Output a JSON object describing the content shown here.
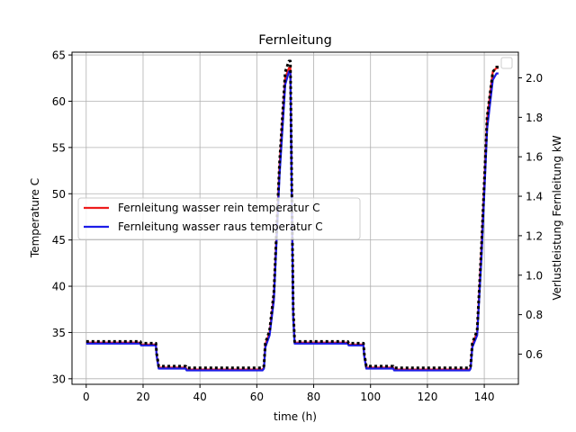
{
  "chart_data": {
    "type": "line",
    "title": "Fernleitung",
    "xlabel": "time (h)",
    "ylabel": "Temperature C",
    "y2label": "Verlustleistung Fernleitung kW",
    "xlim": [
      -5,
      152
    ],
    "ylim": [
      29.4,
      65.3
    ],
    "y2lim": [
      0.447,
      2.13
    ],
    "x_ticks": [
      0,
      20,
      40,
      60,
      80,
      100,
      120,
      140
    ],
    "y_ticks": [
      30,
      35,
      40,
      45,
      50,
      55,
      60,
      65
    ],
    "y2_ticks": [
      0.6,
      0.8,
      1.0,
      1.2,
      1.4,
      1.6,
      1.8,
      2.0
    ],
    "y2_tick_labels": [
      "0.6",
      "0.8",
      "1.0",
      "1.2",
      "1.4",
      "1.6",
      "1.8",
      "2.0"
    ],
    "grid": true,
    "legend_position": "center-left",
    "series": [
      {
        "name": "Fernleitung wasser rein temperatur C",
        "color": "#ee1c1c",
        "axis": "left",
        "x": [
          0,
          19,
          19.3,
          24.5,
          24.8,
          25.5,
          35,
          35.3,
          62,
          62.5,
          63,
          64.5,
          66,
          68,
          70,
          71.3,
          71.8,
          72.3,
          72.8,
          73.3,
          92,
          92.3,
          97.5,
          97.8,
          98.5,
          108,
          108.3,
          134.8,
          135.2,
          135.8,
          137.5,
          139,
          141,
          143,
          144.3,
          145
        ],
        "y": [
          33.9,
          33.9,
          33.7,
          33.7,
          32.5,
          31.2,
          31.2,
          31.0,
          31.0,
          31.2,
          33.7,
          35.0,
          39.0,
          53.0,
          62.5,
          63.6,
          63.6,
          50.0,
          37.0,
          33.9,
          33.9,
          33.7,
          33.7,
          32.5,
          31.2,
          31.2,
          31.0,
          31.0,
          31.2,
          33.7,
          35.0,
          44.0,
          58.0,
          63.2,
          63.6,
          63.6
        ]
      },
      {
        "name": "Fernleitung wasser raus temperatur C",
        "color": "#1c1ce8",
        "axis": "left",
        "x": [
          0,
          19,
          19.3,
          24.5,
          24.8,
          25.5,
          35,
          35.3,
          62,
          62.5,
          63,
          64.5,
          66,
          68,
          70,
          71.3,
          71.8,
          72.3,
          72.8,
          73.3,
          92,
          92.3,
          97.5,
          97.8,
          98.5,
          108,
          108.3,
          134.8,
          135.2,
          135.8,
          137.5,
          139,
          141,
          143,
          144.3,
          145
        ],
        "y": [
          33.8,
          33.8,
          33.6,
          33.6,
          32.4,
          31.1,
          31.1,
          30.9,
          30.9,
          31.1,
          33.4,
          34.7,
          38.5,
          52.0,
          61.8,
          63.2,
          63.2,
          49.5,
          36.6,
          33.8,
          33.8,
          33.6,
          33.6,
          32.4,
          31.1,
          31.1,
          30.9,
          30.9,
          31.1,
          33.4,
          34.7,
          43.0,
          57.0,
          62.3,
          63.0,
          63.0
        ]
      },
      {
        "name": "",
        "color": "#000000",
        "axis": "right",
        "dashed": true,
        "x": [
          0,
          19,
          19.3,
          24.5,
          24.8,
          25.5,
          35,
          35.3,
          62,
          62.5,
          63,
          64.5,
          66,
          68,
          70,
          71.3,
          71.8,
          72.3,
          72.8,
          73.3,
          92,
          92.3,
          97.5,
          97.8,
          98.5,
          108,
          108.3,
          134.8,
          135.2,
          135.8,
          137.5,
          139,
          141,
          143,
          144.3,
          145
        ],
        "y": [
          0.664,
          0.664,
          0.655,
          0.655,
          0.6,
          0.539,
          0.539,
          0.53,
          0.53,
          0.539,
          0.655,
          0.72,
          0.91,
          1.57,
          2.03,
          2.085,
          2.085,
          1.44,
          0.83,
          0.664,
          0.664,
          0.655,
          0.655,
          0.6,
          0.539,
          0.539,
          0.53,
          0.53,
          0.539,
          0.655,
          0.72,
          1.14,
          1.8,
          2.03,
          2.055,
          2.055
        ]
      }
    ],
    "legend_entries": [
      {
        "label": "Fernleitung wasser rein temperatur C",
        "color": "#ee1c1c"
      },
      {
        "label": "Fernleitung wasser raus temperatur C",
        "color": "#1c1ce8"
      }
    ]
  }
}
